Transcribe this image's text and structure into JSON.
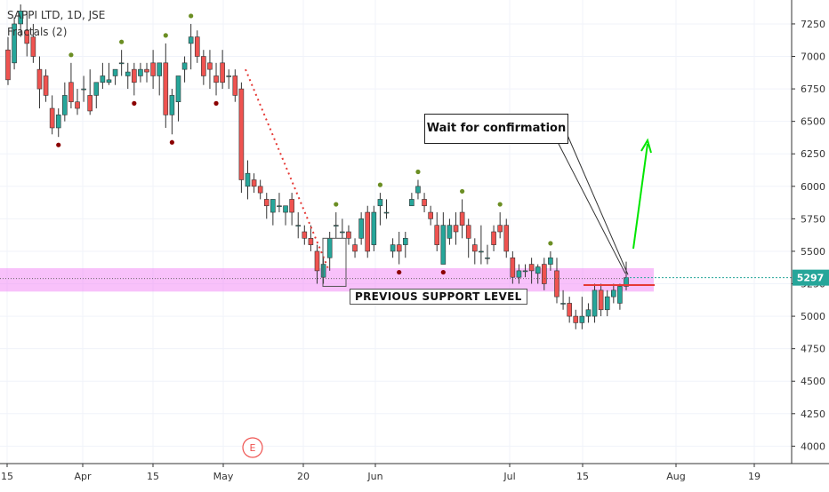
{
  "legend": {
    "symbol": "SAPPI LTD, 1D, JSE",
    "indicator": "Fractals (2)"
  },
  "annotations": {
    "callout": "Wait for confirmation",
    "support_label": "PREVIOUS SUPPORT LEVEL",
    "earnings_marker": "E",
    "price_tag": "5297"
  },
  "colors": {
    "up": "#26a69a",
    "down": "#ef5350",
    "fractal_up": "#6b8e23",
    "fractal_down": "#8b0000",
    "support_band": "#f38ef5",
    "arrow": "#00e600",
    "trendline": "#e53935",
    "price_tag_bg": "#26a69a"
  },
  "chart_data": {
    "type": "candlestick",
    "title": "SAPPI LTD, 1D, JSE",
    "ylim": [
      3900,
      7400
    ],
    "y_ticks": [
      4000,
      4250,
      4500,
      4750,
      5000,
      5250,
      5500,
      5750,
      6000,
      6250,
      6500,
      6750,
      7000,
      7250
    ],
    "x_ticks": [
      "15",
      "Apr",
      "15",
      "May",
      "20",
      "Jun",
      "Jul",
      "15",
      "Aug",
      "19"
    ],
    "support_level": 5300,
    "last_price": 5297,
    "candles": [
      [
        7050,
        7150,
        6780,
        6820
      ],
      [
        6950,
        7300,
        6900,
        7250
      ],
      [
        7250,
        7400,
        7150,
        7350
      ],
      [
        7200,
        7350,
        7000,
        7100
      ],
      [
        7150,
        7250,
        6950,
        7000
      ],
      [
        6900,
        7000,
        6600,
        6750
      ],
      [
        6850,
        6900,
        6650,
        6700
      ],
      [
        6600,
        6700,
        6400,
        6450
      ],
      [
        6450,
        6600,
        6380,
        6550
      ],
      [
        6550,
        6800,
        6500,
        6700
      ],
      [
        6800,
        6950,
        6600,
        6650
      ],
      [
        6650,
        6750,
        6550,
        6600
      ],
      [
        6750,
        6850,
        6650,
        6750
      ],
      [
        6700,
        6900,
        6550,
        6580
      ],
      [
        6700,
        6800,
        6600,
        6800
      ],
      [
        6800,
        6950,
        6750,
        6850
      ],
      [
        6800,
        6950,
        6780,
        6820
      ],
      [
        6850,
        6900,
        6780,
        6900
      ],
      [
        6950,
        7050,
        6850,
        6950
      ],
      [
        6850,
        6950,
        6750,
        6880
      ],
      [
        6900,
        6950,
        6700,
        6800
      ],
      [
        6850,
        6950,
        6800,
        6900
      ],
      [
        6900,
        6950,
        6800,
        6880
      ],
      [
        6950,
        7050,
        6750,
        6850
      ],
      [
        6850,
        6950,
        6700,
        6950
      ],
      [
        6950,
        7100,
        6450,
        6550
      ],
      [
        6550,
        6750,
        6400,
        6700
      ],
      [
        6650,
        6850,
        6500,
        6850
      ],
      [
        6900,
        7000,
        6800,
        6950
      ],
      [
        7100,
        7250,
        6900,
        7150
      ],
      [
        7150,
        7200,
        6950,
        7000
      ],
      [
        7000,
        7050,
        6780,
        6850
      ],
      [
        6950,
        7050,
        6750,
        6900
      ],
      [
        6850,
        6950,
        6700,
        6800
      ],
      [
        6950,
        7050,
        6750,
        6800
      ],
      [
        6850,
        6900,
        6750,
        6850
      ],
      [
        6850,
        6900,
        6650,
        6700
      ],
      [
        6750,
        6800,
        5950,
        6050
      ],
      [
        6000,
        6200,
        5900,
        6100
      ],
      [
        6050,
        6100,
        5950,
        6000
      ],
      [
        6000,
        6050,
        5900,
        5950
      ],
      [
        5900,
        5950,
        5750,
        5850
      ],
      [
        5800,
        5900,
        5700,
        5900
      ],
      [
        5850,
        5950,
        5800,
        5850
      ],
      [
        5800,
        5850,
        5700,
        5850
      ],
      [
        5900,
        5950,
        5700,
        5800
      ],
      [
        5700,
        5800,
        5600,
        5700
      ],
      [
        5650,
        5700,
        5550,
        5600
      ],
      [
        5600,
        5700,
        5500,
        5550
      ],
      [
        5500,
        5550,
        5250,
        5350
      ],
      [
        5300,
        5450,
        5250,
        5400
      ],
      [
        5450,
        5650,
        5350,
        5600
      ],
      [
        5700,
        5800,
        5600,
        5700
      ],
      [
        5650,
        5750,
        5600,
        5650
      ],
      [
        5650,
        5700,
        5550,
        5600
      ],
      [
        5550,
        5600,
        5450,
        5500
      ],
      [
        5600,
        5800,
        5550,
        5750
      ],
      [
        5800,
        5850,
        5450,
        5500
      ],
      [
        5550,
        5850,
        5500,
        5800
      ],
      [
        5850,
        5950,
        5700,
        5900
      ],
      [
        5800,
        5900,
        5750,
        5800
      ],
      [
        5500,
        5600,
        5450,
        5550
      ],
      [
        5550,
        5650,
        5400,
        5500
      ],
      [
        5550,
        5650,
        5450,
        5600
      ],
      [
        5850,
        5950,
        5850,
        5900
      ],
      [
        5950,
        6050,
        5900,
        6000
      ],
      [
        5900,
        5950,
        5800,
        5850
      ],
      [
        5800,
        5850,
        5700,
        5750
      ],
      [
        5700,
        5800,
        5500,
        5550
      ],
      [
        5400,
        5800,
        5400,
        5700
      ],
      [
        5600,
        5750,
        5550,
        5700
      ],
      [
        5700,
        5800,
        5550,
        5650
      ],
      [
        5800,
        5900,
        5600,
        5700
      ],
      [
        5700,
        5750,
        5450,
        5600
      ],
      [
        5550,
        5600,
        5400,
        5500
      ],
      [
        5500,
        5700,
        5400,
        5500
      ],
      [
        5450,
        5550,
        5400,
        5450
      ],
      [
        5650,
        5700,
        5500,
        5550
      ],
      [
        5700,
        5800,
        5600,
        5650
      ],
      [
        5700,
        5750,
        5450,
        5500
      ],
      [
        5450,
        5500,
        5250,
        5300
      ],
      [
        5300,
        5400,
        5250,
        5350
      ],
      [
        5350,
        5400,
        5300,
        5350
      ],
      [
        5400,
        5450,
        5250,
        5350
      ],
      [
        5330,
        5400,
        5250,
        5380
      ],
      [
        5400,
        5450,
        5200,
        5250
      ],
      [
        5400,
        5500,
        5350,
        5450
      ],
      [
        5350,
        5450,
        5100,
        5150
      ],
      [
        5100,
        5200,
        5050,
        5100
      ],
      [
        5100,
        5150,
        4950,
        5000
      ],
      [
        5000,
        5050,
        4900,
        4950
      ],
      [
        4950,
        5150,
        4900,
        5000
      ],
      [
        5000,
        5100,
        4950,
        5050
      ],
      [
        5000,
        5250,
        4950,
        5200
      ],
      [
        5200,
        5250,
        5000,
        5050
      ],
      [
        5050,
        5200,
        5000,
        5150
      ],
      [
        5150,
        5250,
        5100,
        5200
      ],
      [
        5100,
        5250,
        5050,
        5230
      ],
      [
        5230,
        5420,
        5200,
        5297
      ]
    ]
  }
}
